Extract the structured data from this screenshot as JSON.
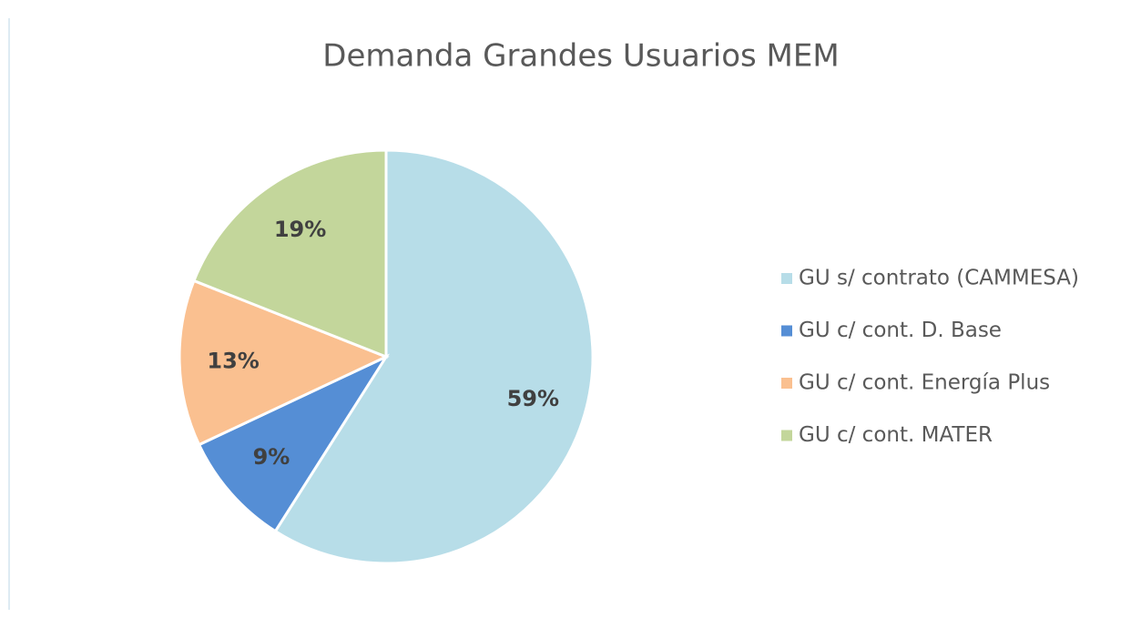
{
  "chart_data": {
    "type": "pie",
    "title": "Demanda Grandes Usuarios MEM",
    "categories": [
      "GU s/ contrato (CAMMESA)",
      "GU c/ cont. D. Base",
      "GU c/ cont. Energía Plus",
      "GU c/ cont. MATER"
    ],
    "values": [
      59,
      9,
      13,
      19
    ],
    "value_labels": [
      "59%",
      "9%",
      "13%",
      "19%"
    ],
    "colors": [
      "#b7dde8",
      "#558ed5",
      "#fac090",
      "#c3d69b"
    ],
    "legend": "right"
  }
}
